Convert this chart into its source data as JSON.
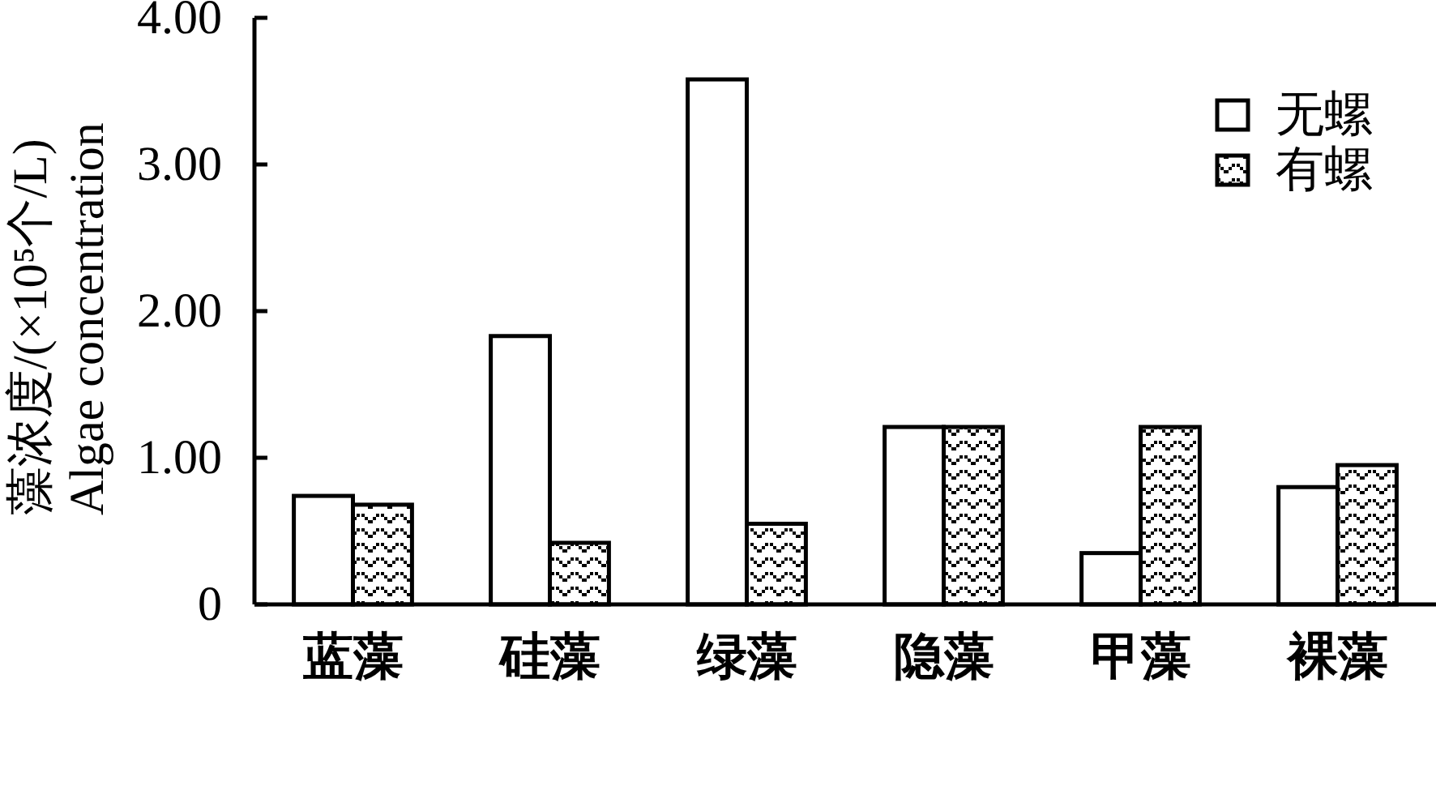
{
  "chart_data": {
    "type": "bar",
    "ylabel": "藻浓度/(×10⁵个/L)\nAlgae concentration",
    "categories": [
      "蓝藻",
      "硅藻",
      "绿藻",
      "隐藻",
      "甲藻",
      "裸藻"
    ],
    "series": [
      {
        "name": "无螺",
        "color": "#000000",
        "values": [
          0.74,
          1.83,
          3.58,
          1.21,
          0.35,
          0.8
        ]
      },
      {
        "name": "有螺",
        "color": "#000000",
        "values": [
          0.68,
          0.42,
          0.55,
          1.21,
          1.21,
          0.95
        ]
      }
    ],
    "ylim": [
      0,
      4
    ],
    "yticks": [
      0,
      {
        "value": 1,
        "label": "1.00"
      },
      {
        "value": 2,
        "label": "2.00"
      },
      {
        "value": 3,
        "label": "3.00"
      },
      {
        "value": 4,
        "label": "4.00"
      }
    ],
    "legend": "top right"
  }
}
